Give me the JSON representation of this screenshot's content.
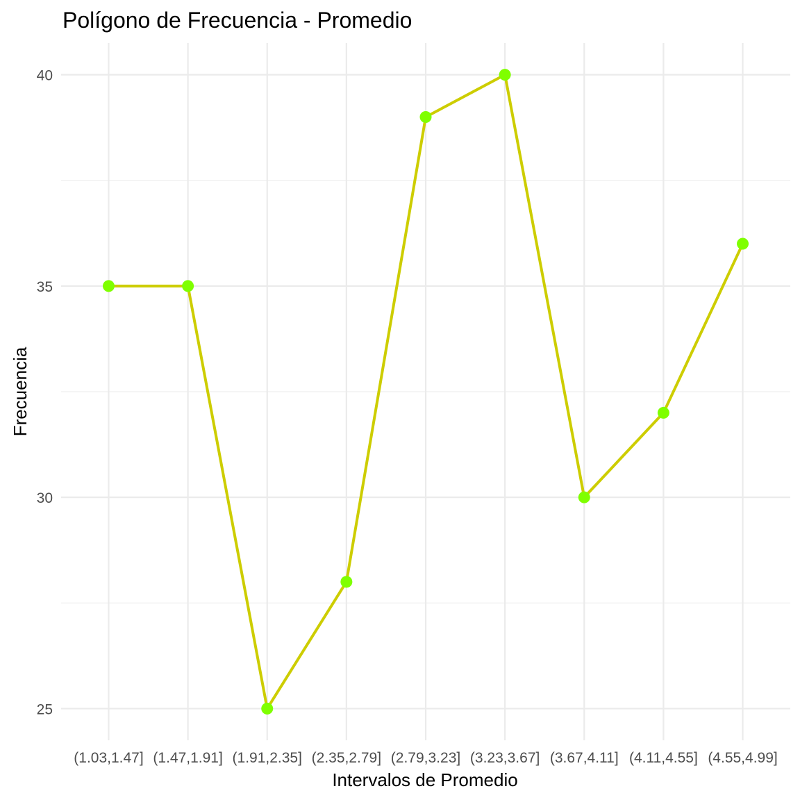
{
  "chart_data": {
    "type": "line",
    "title": "Polígono de Frecuencia - Promedio",
    "xlabel": "Intervalos de Promedio",
    "ylabel": "Frecuencia",
    "categories": [
      "(1.03,1.47]",
      "(1.47,1.91]",
      "(1.91,2.35]",
      "(2.35,2.79]",
      "(2.79,3.23]",
      "(3.23,3.67]",
      "(3.67,4.11]",
      "(4.11,4.55]",
      "(4.55,4.99]"
    ],
    "values": [
      35,
      35,
      25,
      28,
      39,
      40,
      30,
      32,
      36
    ],
    "ylim": [
      24.25,
      40.75
    ],
    "yticks": [
      25,
      30,
      35,
      40
    ],
    "grid": true,
    "legend": "none",
    "colors": {
      "line": "#CDCD00",
      "point": "#7FFF00",
      "grid": "#EBEBEB",
      "tick_text": "#4D4D4D"
    }
  }
}
